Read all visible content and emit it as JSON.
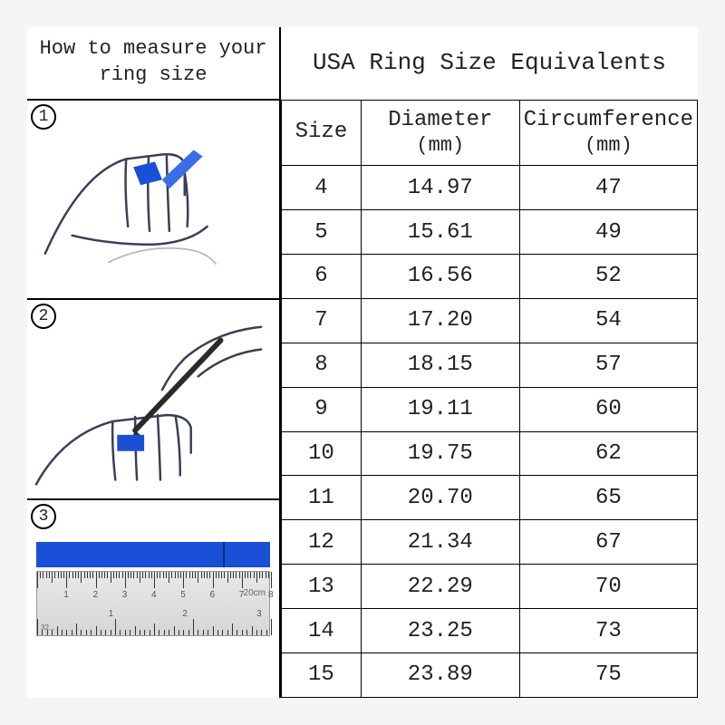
{
  "left": {
    "title_l1": "How to measure your",
    "title_l2": "ring size",
    "steps": [
      "1",
      "2",
      "3"
    ],
    "strip_color": "#1a4fd8",
    "ruler": {
      "cm_label": "20cm",
      "in_label": "32...",
      "cm_numbers": [
        1,
        2,
        3,
        4,
        5,
        6,
        7,
        8
      ],
      "in_numbers": [
        1,
        2,
        3
      ]
    }
  },
  "right": {
    "title": "USA Ring Size Equivalents",
    "columns": {
      "size": "Size",
      "diameter": "Diameter",
      "diameter_unit": "(mm)",
      "circ": "Circumference",
      "circ_unit": "(mm)"
    },
    "rows": [
      {
        "size": "4",
        "dia": "14.97",
        "circ": "47"
      },
      {
        "size": "5",
        "dia": "15.61",
        "circ": "49"
      },
      {
        "size": "6",
        "dia": "16.56",
        "circ": "52"
      },
      {
        "size": "7",
        "dia": "17.20",
        "circ": "54"
      },
      {
        "size": "8",
        "dia": "18.15",
        "circ": "57"
      },
      {
        "size": "9",
        "dia": "19.11",
        "circ": "60"
      },
      {
        "size": "10",
        "dia": "19.75",
        "circ": "62"
      },
      {
        "size": "11",
        "dia": "20.70",
        "circ": "65"
      },
      {
        "size": "12",
        "dia": "21.34",
        "circ": "67"
      },
      {
        "size": "13",
        "dia": "22.29",
        "circ": "70"
      },
      {
        "size": "14",
        "dia": "23.25",
        "circ": "73"
      },
      {
        "size": "15",
        "dia": "23.89",
        "circ": "75"
      }
    ]
  },
  "style": {
    "border_color": "#000000",
    "accent_blue": "#1a4fd8",
    "text_color": "#222222",
    "bg": "#ffffff",
    "font_family": "Courier New"
  }
}
